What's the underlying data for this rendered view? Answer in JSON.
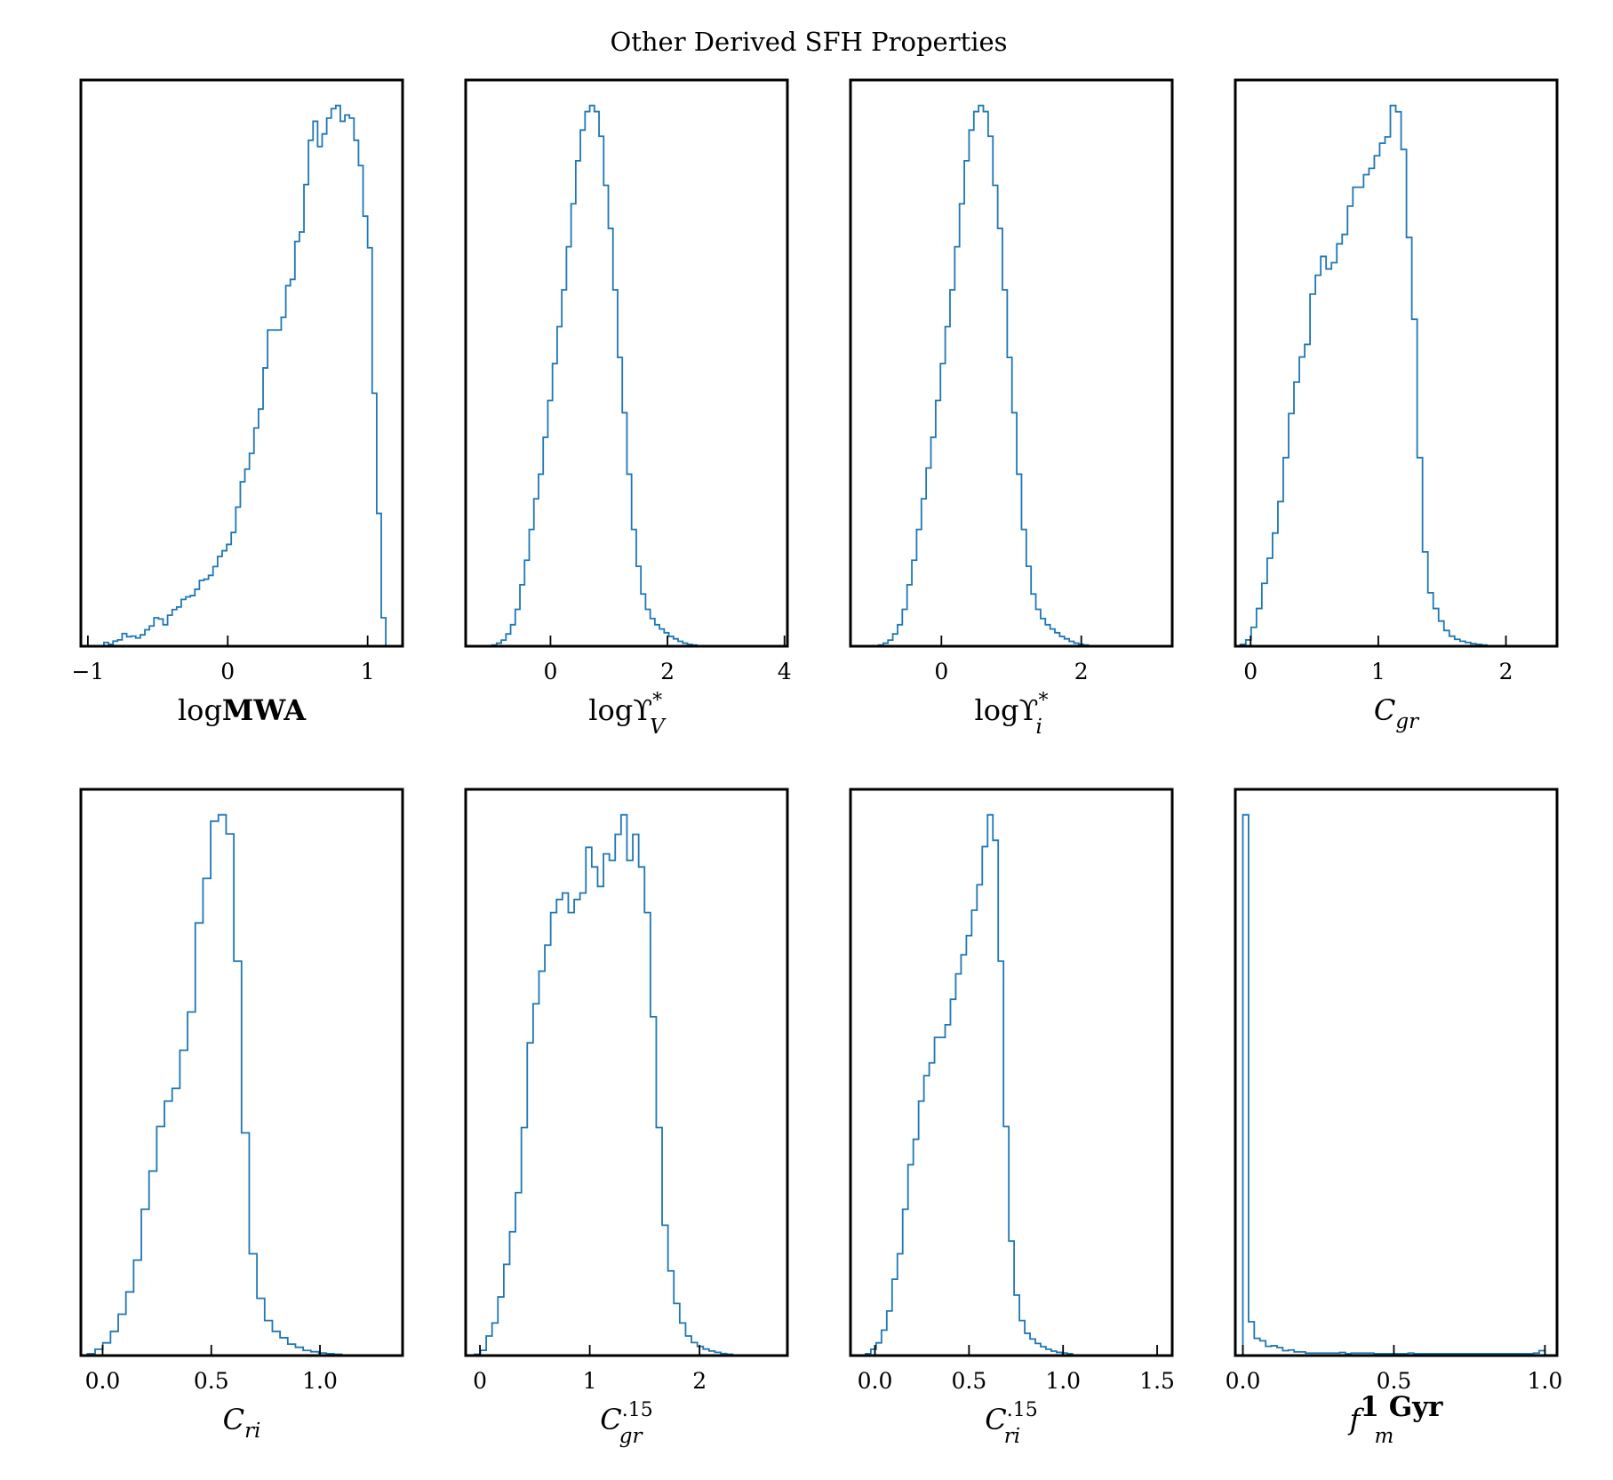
{
  "title": "Other Derived SFH Properties",
  "colors": {
    "histogram": "#1f77b4",
    "frame": "#000000",
    "background": "#ffffff"
  },
  "chart_data": [
    {
      "type": "histogram",
      "grid": false,
      "legend": "none",
      "xlabel": {
        "prefix": "log",
        "main": "MWA",
        "main_style": "bold",
        "sub": "",
        "sup": ""
      },
      "xlim": [
        -1.05,
        1.25
      ],
      "xticks": [
        -1,
        0,
        1
      ],
      "xtick_labels": [
        "−1",
        "0",
        "1"
      ],
      "bin_edges_x": [
        -0.95,
        0.55,
        1.13
      ],
      "counts": [
        0,
        0,
        0.6,
        0.3,
        0.8,
        1,
        2,
        1.5,
        1.6,
        1.3,
        1.8,
        2.6,
        3.2,
        4.5,
        4.3,
        3.4,
        4.9,
        5.8,
        6.2,
        7.4,
        7.8,
        8.0,
        9.0,
        10.4,
        10.6,
        11.2,
        12.6,
        14.2,
        15.1,
        16.1,
        18,
        22,
        26,
        28,
        30.5,
        34.5,
        37.5,
        44,
        50,
        50,
        50,
        52,
        57,
        58,
        64,
        65.5,
        73,
        80,
        83,
        79,
        81,
        83.5,
        85,
        85.5,
        83,
        84,
        83.5,
        80,
        76,
        68,
        63,
        40,
        21,
        4.5
      ]
    },
    {
      "type": "histogram",
      "grid": false,
      "legend": "none",
      "xlabel": {
        "prefix": "log",
        "main": "ϒ",
        "main_style": "normal",
        "sub": "V",
        "sup": "*"
      },
      "xlim": [
        -1.45,
        4.05
      ],
      "xticks": [
        0,
        2,
        4
      ],
      "xtick_labels": [
        "0",
        "2",
        "4"
      ],
      "bin_edges_x": [
        -1.0,
        2.5
      ],
      "counts": [
        0.2,
        0.5,
        1,
        2,
        3.5,
        6,
        10,
        14,
        19,
        24,
        28,
        34,
        40,
        46,
        52,
        58,
        65,
        72,
        79,
        84,
        87,
        88,
        87,
        83,
        75,
        68,
        58,
        47,
        38,
        28,
        19,
        13,
        8.5,
        6,
        4.5,
        3.5,
        2.8,
        2.2,
        1.6,
        1.2,
        0.8,
        0.5,
        0.3,
        0.2
      ]
    },
    {
      "type": "histogram",
      "grid": false,
      "legend": "none",
      "xlabel": {
        "prefix": "log",
        "main": "ϒ",
        "main_style": "normal",
        "sub": "i",
        "sup": "*"
      },
      "xlim": [
        -1.3,
        3.3
      ],
      "xticks": [
        0,
        2
      ],
      "xtick_labels": [
        "0",
        "2"
      ],
      "bin_edges_x": [
        -0.9,
        2.1
      ],
      "counts": [
        0.2,
        0.5,
        1,
        2,
        3.5,
        6,
        10,
        14,
        19,
        24,
        29,
        34,
        40,
        46,
        52,
        58,
        65,
        72,
        79,
        84,
        87,
        88,
        87,
        83,
        75,
        68,
        58,
        47,
        38,
        28,
        19,
        13,
        8.5,
        6,
        4.5,
        3.5,
        2.8,
        2.2,
        1.6,
        1.2,
        0.8,
        0.5,
        0.3,
        0.2
      ]
    },
    {
      "type": "histogram",
      "grid": false,
      "legend": "none",
      "xlabel": {
        "prefix": "",
        "main": "C",
        "main_style": "italic",
        "sub": "gr",
        "sup": ""
      },
      "xlim": [
        -0.12,
        2.4
      ],
      "xticks": [
        0,
        1,
        2
      ],
      "xtick_labels": [
        "0",
        "1",
        "2"
      ],
      "bin_edges_x": [
        -0.08,
        1.85
      ],
      "counts": [
        0.3,
        1,
        3,
        6,
        10,
        14,
        18,
        23,
        30,
        37,
        42,
        46,
        48,
        56,
        59,
        62,
        60,
        61,
        64,
        65.5,
        70,
        73,
        73,
        75,
        76,
        78,
        80,
        81,
        86,
        85,
        79,
        65,
        52,
        30,
        15,
        8.5,
        6,
        4,
        2.5,
        1.6,
        1.1,
        0.8,
        0.6,
        0.4,
        0.3,
        0.2
      ]
    },
    {
      "type": "histogram",
      "grid": false,
      "legend": "none",
      "xlabel": {
        "prefix": "",
        "main": "C",
        "main_style": "italic",
        "sub": "ri",
        "sup": ""
      },
      "xlim": [
        -0.1,
        1.38
      ],
      "xticks": [
        0.0,
        0.5,
        1.0
      ],
      "xtick_labels": [
        "0.0",
        "0.5",
        "1.0"
      ],
      "bin_edges_x": [
        -0.07,
        1.1
      ],
      "counts": [
        0.3,
        1,
        2,
        3.8,
        6.5,
        10,
        15,
        23,
        29,
        36,
        40,
        42,
        48,
        54,
        68,
        75,
        84,
        85,
        82,
        62,
        35,
        16,
        9,
        5.5,
        3.8,
        2.8,
        1.8,
        1.3,
        0.8,
        0.6,
        0.4,
        0.3,
        0.2
      ]
    },
    {
      "type": "histogram",
      "grid": false,
      "legend": "none",
      "xlabel": {
        "prefix": "",
        "main": "C",
        "main_style": "italic",
        "sub": "gr",
        "sup": ".15"
      },
      "xlim": [
        -0.13,
        2.8
      ],
      "xticks": [
        0,
        1,
        2
      ],
      "xtick_labels": [
        "0",
        "1",
        "2"
      ],
      "bin_edges_x": [
        -0.05,
        2.3
      ],
      "counts": [
        0.2,
        0.8,
        3,
        5,
        9,
        14,
        19,
        25,
        35,
        48,
        54,
        59,
        63,
        68,
        70,
        71,
        68,
        70,
        71,
        78,
        75,
        72,
        77,
        76,
        80,
        83,
        76,
        80,
        75,
        68,
        52,
        35,
        20,
        13,
        8,
        5,
        3,
        2,
        1.4,
        1,
        0.7,
        0.5,
        0.3,
        0.2
      ]
    },
    {
      "type": "histogram",
      "grid": false,
      "legend": "none",
      "xlabel": {
        "prefix": "",
        "main": "C",
        "main_style": "italic",
        "sub": "ri",
        "sup": ".15"
      },
      "xlim": [
        -0.13,
        1.58
      ],
      "xticks": [
        0.0,
        0.5,
        1.0,
        1.5
      ],
      "xtick_labels": [
        "0.0",
        "0.5",
        "1.0",
        "1.5"
      ],
      "bin_edges_x": [
        -0.05,
        1.05
      ],
      "counts": [
        0.3,
        1,
        2,
        4,
        7,
        12,
        16,
        23,
        30,
        34,
        40,
        44,
        46,
        50,
        50,
        52,
        56,
        60,
        63,
        66,
        70,
        74,
        80,
        85,
        81,
        62,
        36,
        18,
        9.5,
        5.5,
        3.5,
        2.6,
        1.9,
        1.4,
        1,
        0.7,
        0.5,
        0.4,
        0.3
      ]
    },
    {
      "type": "histogram",
      "grid": false,
      "legend": "none",
      "xlabel": {
        "prefix": "",
        "main": "f",
        "main_style": "italic",
        "sub": "m",
        "sup": "1 Gyr"
      },
      "xlim": [
        -0.025,
        1.04
      ],
      "xticks": [
        0.0,
        0.5,
        1.0
      ],
      "xtick_labels": [
        "0.0",
        "0.5",
        "1.0"
      ],
      "bin_edges_x": [
        0.0,
        1.0
      ],
      "counts": [
        88,
        5.5,
        2.8,
        2.4,
        1.5,
        1.6,
        1.3,
        0.8,
        0.9,
        0.6,
        0.6,
        0.4,
        0.4,
        0.4,
        0.4,
        0.4,
        0.4,
        0.5,
        0.3,
        0.4,
        0.4,
        0.4,
        0.4,
        0.3,
        0.3,
        0.3,
        0.3,
        0.3,
        0.3,
        0.4,
        0.3,
        0.3,
        0.3,
        0.3,
        0.3,
        0.3,
        0.3,
        0.3,
        0.3,
        0.3,
        0.3,
        0.3,
        0.3,
        0.3,
        0.3,
        0.3,
        0.3,
        0.3,
        0.3,
        0.3,
        0.3,
        0.4,
        0.8
      ]
    }
  ]
}
